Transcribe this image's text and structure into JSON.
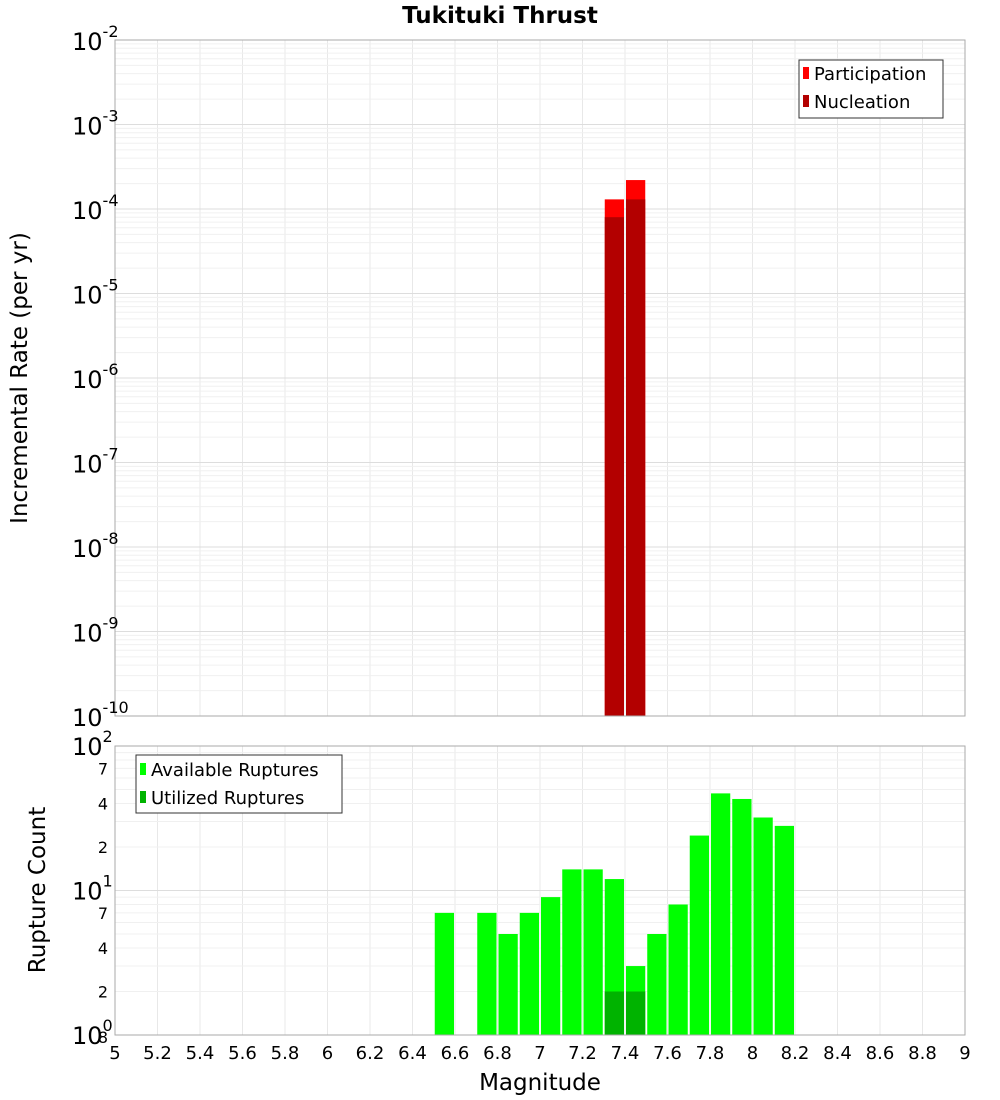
{
  "chart_data": [
    {
      "type": "bar",
      "title": "Tukituki Thrust",
      "xlabel": "",
      "ylabel": "Incremental Rate (per yr)",
      "xlim": [
        5,
        9
      ],
      "ylim": [
        1e-10,
        0.01
      ],
      "yscale": "log",
      "y_ticks": [
        {
          "base": "10",
          "exp": "-2"
        },
        {
          "base": "10",
          "exp": "-3"
        },
        {
          "base": "10",
          "exp": "-4"
        },
        {
          "base": "10",
          "exp": "-5"
        },
        {
          "base": "10",
          "exp": "-6"
        },
        {
          "base": "10",
          "exp": "-7"
        },
        {
          "base": "10",
          "exp": "-8"
        },
        {
          "base": "10",
          "exp": "-9"
        },
        {
          "base": "10",
          "exp": "-10"
        }
      ],
      "grid": true,
      "legend_position": "top-right",
      "series": [
        {
          "name": "Participation",
          "color": "#ff0000",
          "x": [
            7.35,
            7.45
          ],
          "values": [
            0.00013,
            0.00022
          ]
        },
        {
          "name": "Nucleation",
          "color": "#b30000",
          "x": [
            7.35,
            7.45
          ],
          "values": [
            8e-05,
            0.00013
          ]
        }
      ]
    },
    {
      "type": "bar",
      "title": "",
      "xlabel": "Magnitude",
      "ylabel": "Rupture Count",
      "xlim": [
        5,
        9
      ],
      "ylim": [
        1,
        100
      ],
      "yscale": "log",
      "x_ticks": [
        "5",
        "5.2",
        "5.4",
        "5.6",
        "5.8",
        "6",
        "6.2",
        "6.4",
        "6.6",
        "6.8",
        "7",
        "7.2",
        "7.4",
        "7.6",
        "7.8",
        "8",
        "8.2",
        "8.4",
        "8.6",
        "8.8",
        "9"
      ],
      "y_major_ticks": [
        {
          "base": "10",
          "exp": "2"
        },
        {
          "base": "10",
          "exp": "1"
        },
        {
          "base": "10",
          "exp": "0"
        }
      ],
      "y_minor_ticks": [
        "7",
        "4",
        "2",
        "7",
        "4",
        "2",
        "8"
      ],
      "grid": true,
      "legend_position": "top-left",
      "series": [
        {
          "name": "Available Ruptures",
          "color": "#00ff00",
          "x": [
            6.55,
            6.75,
            6.85,
            6.95,
            7.05,
            7.15,
            7.25,
            7.35,
            7.45,
            7.55,
            7.65,
            7.75,
            7.85,
            7.95,
            8.05,
            8.15
          ],
          "values": [
            7,
            7,
            5,
            7,
            9,
            14,
            14,
            12,
            3,
            5,
            8,
            24,
            47,
            43,
            32,
            28
          ]
        },
        {
          "name": "Utilized Ruptures",
          "color": "#00b300",
          "x": [
            7.35,
            7.45
          ],
          "values": [
            2,
            2
          ]
        }
      ]
    }
  ]
}
